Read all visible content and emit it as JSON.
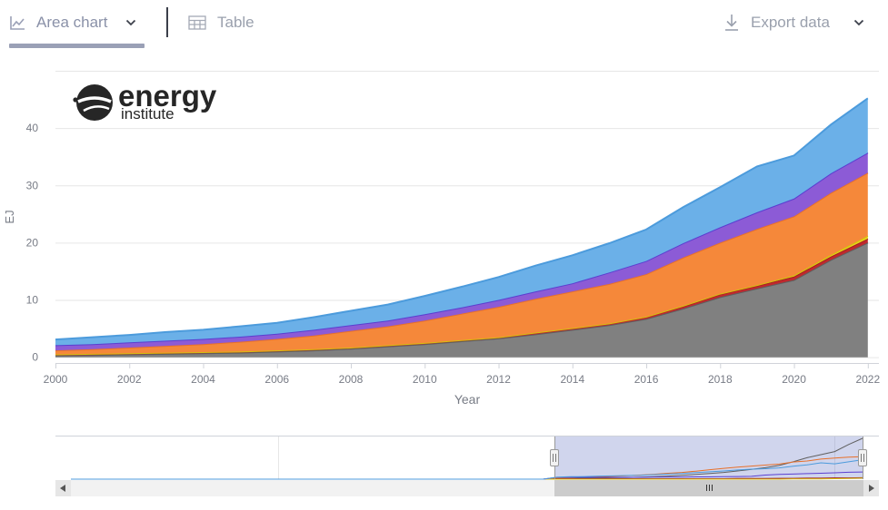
{
  "toolbar": {
    "area_chart_label": "Area chart",
    "table_label": "Table",
    "export_label": "Export data"
  },
  "logo": {
    "line1": "energy",
    "line2": "institute"
  },
  "chart_data": {
    "type": "area",
    "stacked": true,
    "xlabel": "Year",
    "ylabel": "EJ",
    "x": [
      2000,
      2001,
      2002,
      2003,
      2004,
      2005,
      2006,
      2007,
      2008,
      2009,
      2010,
      2011,
      2012,
      2013,
      2014,
      2015,
      2016,
      2017,
      2018,
      2019,
      2020,
      2021,
      2022
    ],
    "xticks": [
      2000,
      2002,
      2004,
      2006,
      2008,
      2010,
      2012,
      2014,
      2016,
      2018,
      2020,
      2022
    ],
    "yticks": [
      0,
      10,
      20,
      30,
      40
    ],
    "xlim": [
      2000,
      2022.3
    ],
    "ylim": [
      -1,
      50
    ],
    "grid": true,
    "legend": "none",
    "series": [
      {
        "color": "#808080",
        "edge": "#5f5f5f",
        "values": [
          0.3,
          0.4,
          0.5,
          0.6,
          0.7,
          0.8,
          1.0,
          1.2,
          1.5,
          1.9,
          2.3,
          2.8,
          3.3,
          4.0,
          4.8,
          5.6,
          6.7,
          8.5,
          10.5,
          12.0,
          13.5,
          17.0,
          20.0
        ]
      },
      {
        "color": "#c0282d",
        "edge": "#a01e22",
        "values": [
          0.2,
          0.2,
          0.2,
          0.2,
          0.2,
          0.2,
          0.2,
          0.2,
          0.2,
          0.2,
          0.2,
          0.2,
          0.2,
          0.3,
          0.3,
          0.3,
          0.4,
          0.4,
          0.5,
          0.5,
          0.6,
          0.6,
          0.7
        ]
      },
      {
        "color": "#e8d21b",
        "edge": "#d4bf0f",
        "values": [
          0.0,
          0.0,
          0.0,
          0.0,
          0.0,
          0.0,
          0.0,
          0.0,
          0.0,
          0.0,
          0.0,
          0.0,
          0.0,
          0.0,
          0.0,
          0.0,
          0.0,
          0.1,
          0.1,
          0.1,
          0.2,
          0.3,
          0.5
        ]
      },
      {
        "color": "#f5883a",
        "edge": "#e8702a",
        "values": [
          0.7,
          0.8,
          1.0,
          1.2,
          1.4,
          1.7,
          2.0,
          2.4,
          2.9,
          3.3,
          3.9,
          4.6,
          5.3,
          5.9,
          6.4,
          6.9,
          7.4,
          8.4,
          8.9,
          9.8,
          10.3,
          10.8,
          11.0
        ]
      },
      {
        "color": "#8c5bd6",
        "edge": "#5a3fd0",
        "values": [
          0.9,
          0.9,
          0.9,
          0.9,
          0.9,
          0.9,
          0.9,
          1.0,
          1.0,
          1.0,
          1.1,
          1.1,
          1.2,
          1.3,
          1.4,
          2.0,
          2.3,
          2.5,
          2.7,
          2.9,
          3.1,
          3.4,
          3.5
        ]
      },
      {
        "color": "#6bb0e8",
        "edge": "#4c9bdc",
        "values": [
          1.0,
          1.2,
          1.3,
          1.5,
          1.6,
          1.8,
          1.9,
          2.2,
          2.5,
          2.8,
          3.2,
          3.6,
          4.0,
          4.5,
          4.9,
          5.1,
          5.5,
          6.3,
          7.0,
          8.0,
          7.5,
          8.5,
          9.5
        ]
      }
    ]
  }
}
